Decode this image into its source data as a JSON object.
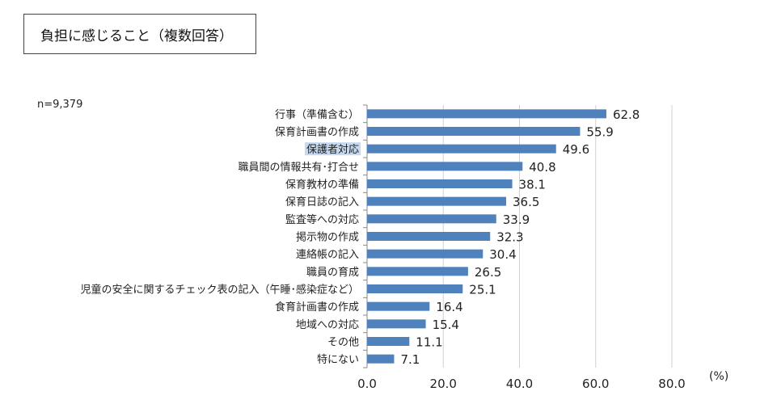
{
  "title": "負担に感じること（複数回答）",
  "note": "n=9,379",
  "chart_data": {
    "type": "bar",
    "orientation": "horizontal",
    "title": "負担に感じること（複数回答）",
    "categories": [
      "行事（準備含む）",
      "保育計画書の作成",
      "保護者対応",
      "職員間の情報共有･打合せ",
      "保育教材の準備",
      "保育日誌の記入",
      "監査等への対応",
      "掲示物の作成",
      "連絡帳の記入",
      "職員の育成",
      "児童の安全に関するチェック表の記入（午睡･感染症など）",
      "食育計画書の作成",
      "地域への対応",
      "その他",
      "特にない"
    ],
    "values": [
      62.8,
      55.9,
      49.6,
      40.8,
      38.1,
      36.5,
      33.9,
      32.3,
      30.4,
      26.5,
      25.1,
      16.4,
      15.4,
      11.1,
      7.1
    ],
    "value_labels": [
      "62.8",
      "55.9",
      "49.6",
      "40.8",
      "38.1",
      "36.5",
      "33.9",
      "32.3",
      "30.4",
      "26.5",
      "25.1",
      "16.4",
      "15.4",
      "11.1",
      "7.1"
    ],
    "xlim": [
      0,
      80
    ],
    "xticks": [
      "0.0",
      "20.0",
      "40.0",
      "60.0",
      "80.0"
    ],
    "unit_label": "(%)",
    "highlighted_category": "保護者対応",
    "bar_color": "#4f81bd",
    "highlight_color": "#c5d9f1",
    "grid": "vertical"
  }
}
